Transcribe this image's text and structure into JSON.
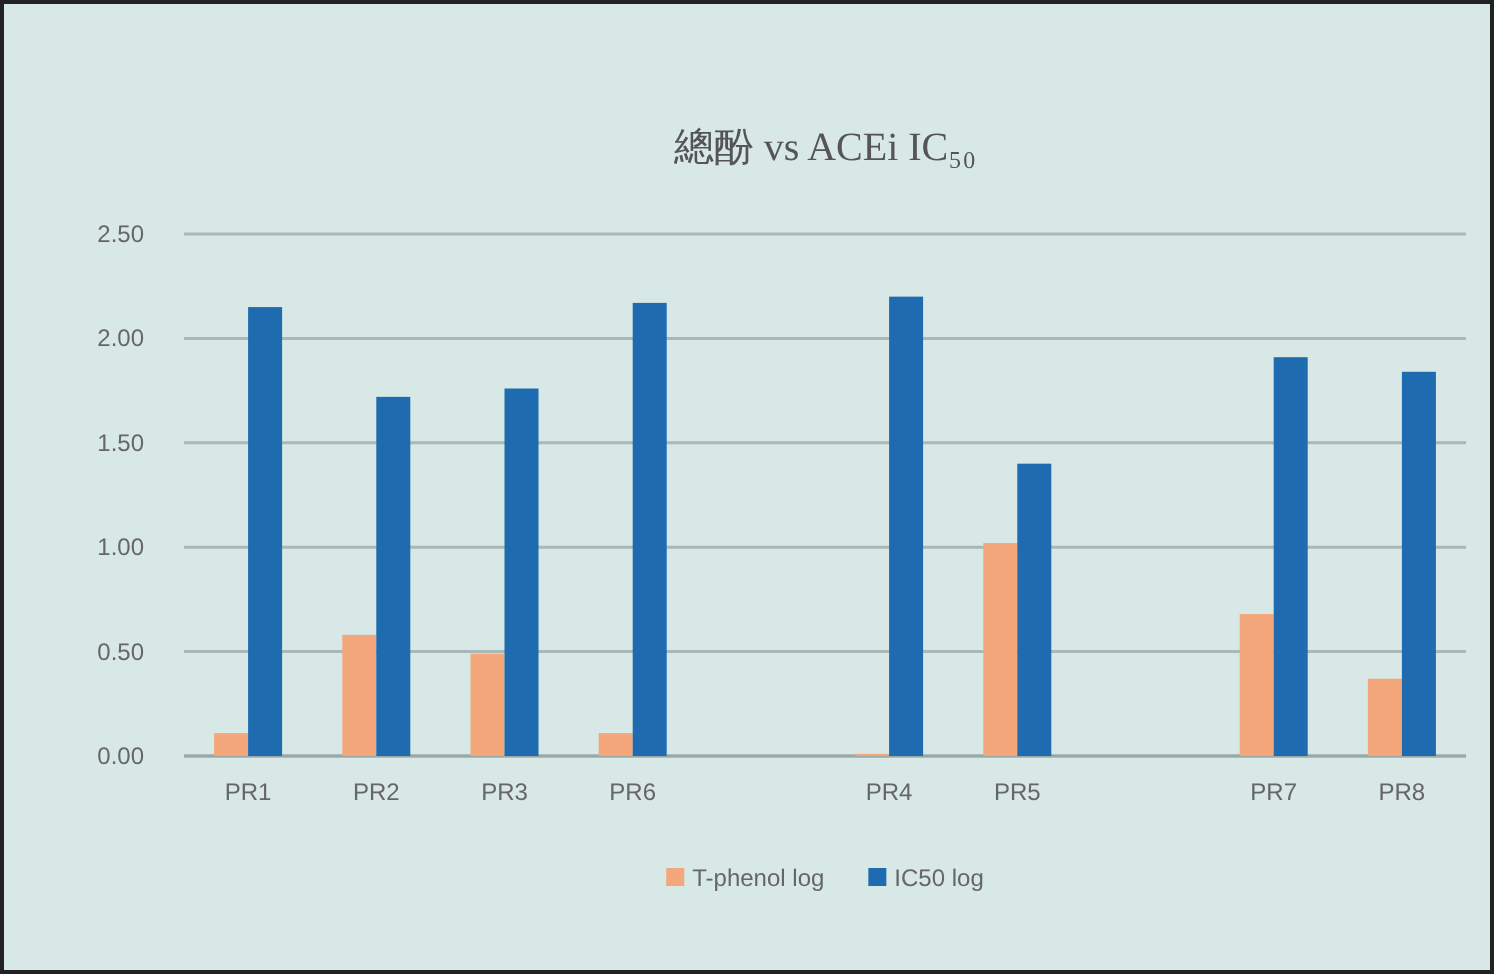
{
  "chart_data": {
    "type": "bar",
    "title": "總酚 vs ACEi IC₅₀",
    "categories": [
      "PR1",
      "PR2",
      "PR3",
      "PR6",
      null,
      "PR4",
      "PR5",
      null,
      "PR7",
      "PR8"
    ],
    "series": [
      {
        "name": "T-phenol log",
        "color": "#f4a77a",
        "values": [
          0.11,
          0.58,
          0.49,
          0.11,
          null,
          0.01,
          1.02,
          null,
          0.68,
          0.37
        ]
      },
      {
        "name": "IC50 log",
        "color": "#1f6bb0",
        "values": [
          2.15,
          1.72,
          1.76,
          2.17,
          null,
          2.2,
          1.4,
          null,
          1.91,
          1.84
        ]
      }
    ],
    "ylim": [
      0,
      2.5
    ],
    "yticks": [
      {
        "value": 0,
        "label": "0.00"
      },
      {
        "value": 0.5,
        "label": "0.50"
      },
      {
        "value": 1,
        "label": "1.00"
      },
      {
        "value": 1.5,
        "label": "1.50"
      },
      {
        "value": 2,
        "label": "2.00"
      },
      {
        "value": 2.5,
        "label": "2.50"
      }
    ],
    "grid": "y",
    "legend": "bottom"
  }
}
